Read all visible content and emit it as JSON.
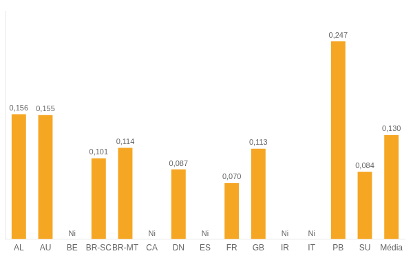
{
  "chart_data": {
    "type": "bar",
    "categories": [
      "AL",
      "AU",
      "BE",
      "BR-SC",
      "BR-MT",
      "CA",
      "DN",
      "ES",
      "FR",
      "GB",
      "IR",
      "IT",
      "PB",
      "SU",
      "Média"
    ],
    "values": [
      0.156,
      0.155,
      null,
      0.101,
      0.114,
      null,
      0.087,
      null,
      0.07,
      0.113,
      null,
      null,
      0.247,
      0.084,
      0.13
    ],
    "value_labels": [
      "0,156",
      "0,155",
      "Ni",
      "0,101",
      "0,114",
      "Ni",
      "0,087",
      "Ni",
      "0,070",
      "0,113",
      "Ni",
      "Ni",
      "0,247",
      "0,084",
      "0,130"
    ],
    "color": "#F5A623",
    "ylim": [
      0,
      0.285
    ],
    "grid": false,
    "data_labels": true,
    "tick_labels": "x"
  }
}
